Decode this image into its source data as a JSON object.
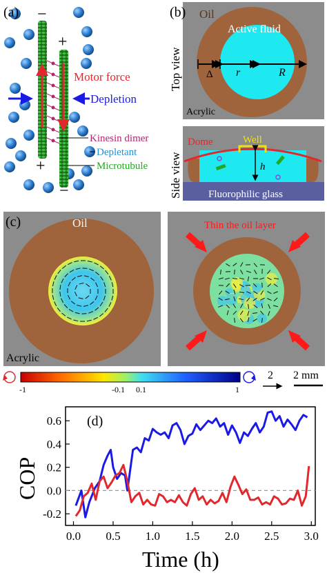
{
  "panel_a": {
    "label": "(a)",
    "minus_top": "−",
    "plus_top": "+",
    "plus_bottom": "+",
    "minus_bottom": "−",
    "motor_force": "Motor force",
    "depletion": "Depletion",
    "kinesin": "Kinesin dimer",
    "depletant": "Depletant",
    "microtubule": "Microtubule",
    "colors": {
      "motor": "#e0282e",
      "depletion": "#1a1ae6",
      "kinesin": "#b0256b",
      "depletant": "#1e90d6",
      "microtubule": "#22aa22",
      "bead": "#2f7fd0"
    }
  },
  "panel_b": {
    "label": "(b)",
    "oil": "Oil",
    "active_fluid": "Active fluid",
    "top_view": "Top view",
    "side_view": "Side view",
    "delta": "Δ",
    "r": "r",
    "R": "R",
    "acrylic": "Acrylic",
    "dome": "Dome",
    "well": "Well",
    "h": "h",
    "glass": "Fluorophilic glass",
    "colors": {
      "oil": "#a0643c",
      "fluid": "#1ee8f0",
      "acrylic": "#8c8c8c",
      "glass": "#5a5fa0",
      "dome": "#e0282e",
      "well": "#f0e010"
    }
  },
  "panel_c": {
    "label": "(c)",
    "oil": "Oil",
    "acrylic": "Acrylic",
    "thin": "Thin the oil layer"
  },
  "colorbar": {
    "ticks": [
      "-1",
      "-0.1",
      "0.1",
      "1"
    ],
    "arrow_value": "2",
    "scale_label": "2 mm"
  },
  "chart_data": {
    "type": "line",
    "panel_label": "(d)",
    "xlabel": "Time (h)",
    "ylabel": "COP",
    "xlim": [
      -0.1,
      3.05
    ],
    "ylim": [
      -0.3,
      0.72
    ],
    "xticks": [
      "0.0",
      "0.5",
      "1.0",
      "1.5",
      "2.0",
      "2.5",
      "3.0"
    ],
    "yticks": [
      "-0.2",
      "0.0",
      "0.2",
      "0.4",
      "0.6"
    ],
    "reference_line": 0.0,
    "series": [
      {
        "color": "#1a1ae6",
        "points": [
          [
            0.03,
            -0.13
          ],
          [
            0.1,
            0.0
          ],
          [
            0.15,
            -0.23
          ],
          [
            0.2,
            -0.1
          ],
          [
            0.27,
            0.02
          ],
          [
            0.33,
            0.08
          ],
          [
            0.38,
            0.22
          ],
          [
            0.43,
            0.3
          ],
          [
            0.47,
            0.35
          ],
          [
            0.5,
            0.2
          ],
          [
            0.55,
            0.1
          ],
          [
            0.6,
            0.15
          ],
          [
            0.65,
            0.13
          ],
          [
            0.68,
            0.0
          ],
          [
            0.75,
            0.35
          ],
          [
            0.8,
            0.37
          ],
          [
            0.85,
            0.33
          ],
          [
            0.9,
            0.45
          ],
          [
            0.95,
            0.43
          ],
          [
            1.0,
            0.53
          ],
          [
            1.05,
            0.5
          ],
          [
            1.1,
            0.48
          ],
          [
            1.15,
            0.5
          ],
          [
            1.2,
            0.45
          ],
          [
            1.25,
            0.56
          ],
          [
            1.3,
            0.58
          ],
          [
            1.35,
            0.52
          ],
          [
            1.4,
            0.4
          ],
          [
            1.45,
            0.47
          ],
          [
            1.5,
            0.49
          ],
          [
            1.55,
            0.57
          ],
          [
            1.6,
            0.52
          ],
          [
            1.65,
            0.56
          ],
          [
            1.7,
            0.6
          ],
          [
            1.75,
            0.58
          ],
          [
            1.8,
            0.62
          ],
          [
            1.85,
            0.55
          ],
          [
            1.9,
            0.58
          ],
          [
            1.95,
            0.48
          ],
          [
            2.0,
            0.56
          ],
          [
            2.05,
            0.5
          ],
          [
            2.1,
            0.41
          ],
          [
            2.15,
            0.5
          ],
          [
            2.2,
            0.47
          ],
          [
            2.25,
            0.53
          ],
          [
            2.3,
            0.58
          ],
          [
            2.35,
            0.5
          ],
          [
            2.4,
            0.55
          ],
          [
            2.45,
            0.67
          ],
          [
            2.5,
            0.68
          ],
          [
            2.55,
            0.6
          ],
          [
            2.6,
            0.64
          ],
          [
            2.65,
            0.55
          ],
          [
            2.7,
            0.61
          ],
          [
            2.75,
            0.57
          ],
          [
            2.8,
            0.52
          ],
          [
            2.85,
            0.6
          ],
          [
            2.9,
            0.65
          ],
          [
            2.95,
            0.63
          ]
        ]
      },
      {
        "color": "#e0282e",
        "points": [
          [
            0.03,
            -0.22
          ],
          [
            0.08,
            -0.17
          ],
          [
            0.13,
            -0.05
          ],
          [
            0.18,
            -0.02
          ],
          [
            0.23,
            0.06
          ],
          [
            0.28,
            -0.08
          ],
          [
            0.33,
            0.08
          ],
          [
            0.38,
            0.12
          ],
          [
            0.43,
            0.02
          ],
          [
            0.48,
            0.07
          ],
          [
            0.53,
            0.13
          ],
          [
            0.58,
            0.15
          ],
          [
            0.63,
            0.22
          ],
          [
            0.68,
            0.08
          ],
          [
            0.73,
            -0.1
          ],
          [
            0.78,
            -0.05
          ],
          [
            0.83,
            -0.02
          ],
          [
            0.88,
            -0.12
          ],
          [
            0.93,
            -0.08
          ],
          [
            0.98,
            -0.12
          ],
          [
            1.03,
            -0.13
          ],
          [
            1.08,
            -0.03
          ],
          [
            1.13,
            -0.05
          ],
          [
            1.18,
            -0.1
          ],
          [
            1.23,
            -0.08
          ],
          [
            1.28,
            -0.1
          ],
          [
            1.33,
            -0.04
          ],
          [
            1.38,
            -0.1
          ],
          [
            1.43,
            -0.13
          ],
          [
            1.48,
            -0.03
          ],
          [
            1.53,
            0.02
          ],
          [
            1.58,
            -0.08
          ],
          [
            1.63,
            -0.05
          ],
          [
            1.68,
            -0.12
          ],
          [
            1.73,
            -0.08
          ],
          [
            1.78,
            -0.11
          ],
          [
            1.83,
            -0.09
          ],
          [
            1.88,
            -0.02
          ],
          [
            1.93,
            -0.1
          ],
          [
            1.98,
            0.03
          ],
          [
            2.03,
            0.12
          ],
          [
            2.08,
            0.05
          ],
          [
            2.13,
            -0.03
          ],
          [
            2.18,
            0.01
          ],
          [
            2.23,
            -0.08
          ],
          [
            2.28,
            -0.08
          ],
          [
            2.33,
            -0.06
          ],
          [
            2.38,
            -0.12
          ],
          [
            2.43,
            -0.1
          ],
          [
            2.48,
            -0.12
          ],
          [
            2.53,
            -0.05
          ],
          [
            2.58,
            -0.07
          ],
          [
            2.63,
            -0.12
          ],
          [
            2.68,
            -0.11
          ],
          [
            2.73,
            -0.07
          ],
          [
            2.78,
            -0.08
          ],
          [
            2.83,
            0.0
          ],
          [
            2.88,
            -0.13
          ],
          [
            2.93,
            -0.05
          ],
          [
            2.97,
            0.21
          ]
        ]
      }
    ]
  }
}
